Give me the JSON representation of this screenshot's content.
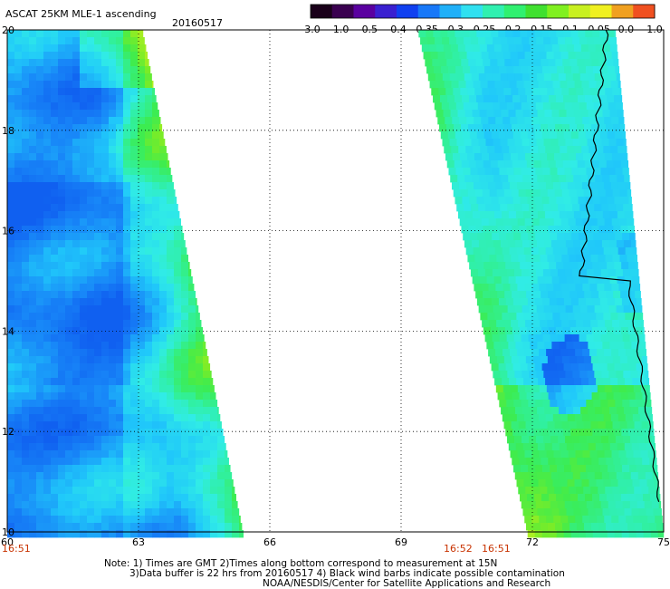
{
  "header": {
    "title": "ASCAT 25KM MLE-1 ascending",
    "date": "20160517"
  },
  "colorbar": {
    "colors": [
      "#1a001a",
      "#3a0050",
      "#5a00a0",
      "#3a20d0",
      "#1040f0",
      "#1878f8",
      "#20b0f8",
      "#30e0f0",
      "#30f0b0",
      "#30f070",
      "#40e030",
      "#80f020",
      "#c8f020",
      "#f0f020",
      "#f0a020",
      "#f05020"
    ],
    "tick_labels": [
      "-3.0",
      "-1.0",
      "-0.5",
      "-0.4",
      "-0.35",
      "-0.3",
      "-0.25",
      "-0.2",
      "-0.15",
      "-0.1",
      "-0.05",
      "0.0",
      "1.0"
    ]
  },
  "chart_data": {
    "type": "heatmap",
    "title": "ASCAT 25KM MLE-1 ascending",
    "subtitle": "20160517",
    "x_ticks": [
      "60",
      "63",
      "66",
      "69",
      "72",
      "75"
    ],
    "y_ticks": [
      "20",
      "18",
      "16",
      "14",
      "12",
      "10"
    ],
    "xlim": [
      60,
      75
    ],
    "ylim": [
      10,
      20
    ],
    "grid": true,
    "pass_times": [
      "16:51",
      "16:52",
      "16:51"
    ],
    "swaths": [
      {
        "name": "",
        "lon_west_edge": [
          60,
          60
        ],
        "lon_east_edge": [
          63.1,
          65.4
        ],
        "lat_range": [
          10,
          20
        ]
      },
      {
        "name": "",
        "lon_west_edge": [
          69.4,
          71.9
        ],
        "lon_east_edge": [
          73.9,
          75
        ],
        "lat_range": [
          10,
          20
        ]
      }
    ]
  },
  "footer": {
    "line1": "Note: 1) Times are GMT 2)Times along bottom correspond to measurement at 15N",
    "line2": "3)Data buffer is 22 hrs from 20160517 4) Black wind barbs indicate possible contamination",
    "line3": "NOAA/NESDIS/Center for Satellite Applications and Research"
  }
}
